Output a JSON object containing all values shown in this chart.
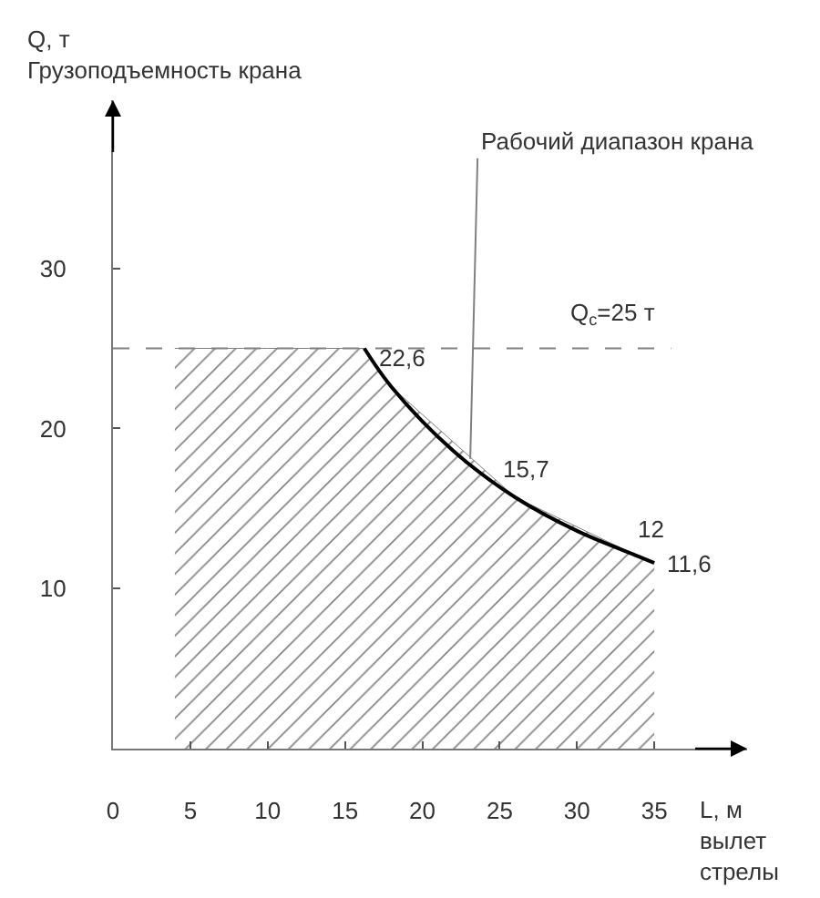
{
  "chart_data": {
    "type": "area",
    "ylabel": "Q, т\nГрузоподъемность крана",
    "xlabel": "L, м\nвылет\nстрелы",
    "xlim": [
      0,
      41
    ],
    "xticks": [
      0,
      5,
      10,
      15,
      20,
      25,
      30,
      35
    ],
    "ylim": [
      0,
      40.5
    ],
    "yticks": [
      10,
      20,
      30
    ],
    "grid": false,
    "series": [
      {
        "color": "#808080",
        "x": [
          4,
          10,
          16.25,
          18,
          26,
          34,
          35
        ],
        "values": [
          25,
          25,
          25,
          22.6,
          15.7,
          12,
          11.6
        ]
      },
      {
        "type": "line",
        "color": "#000000",
        "x": [
          16.25,
          18,
          22,
          26,
          30,
          34,
          35
        ],
        "values": [
          25,
          22.6,
          18.6,
          15.7,
          13.6,
          12,
          11.6
        ],
        "value_labels": [
          null,
          "22,6",
          null,
          "15,7",
          null,
          "12",
          "11,6"
        ]
      }
    ],
    "ref_lines": [
      {
        "axis": "y",
        "value": 25,
        "label": "Q$_{с}$=25 т",
        "line_style": "dashed",
        "color": "#808080"
      }
    ],
    "annotations": [
      {
        "text": "Рабочий диапазон крана",
        "x": 23.1,
        "y": 18.1
      }
    ]
  }
}
